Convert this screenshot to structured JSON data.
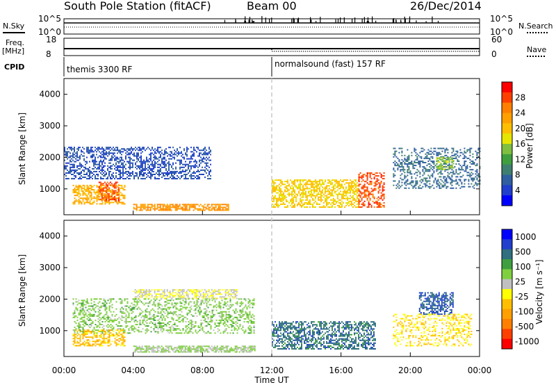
{
  "header": {
    "station": "South Pole Station (fitACF)",
    "beam": "Beam 00",
    "date": "26/Dec/2014"
  },
  "strip": {
    "nsky_label": "N.Sky",
    "nsearch_label": "N.Search",
    "freq_label": "Freq.",
    "freq_unit": "[MHz]",
    "nave_label": "Nave",
    "cpid_label": "CPID",
    "noise_ticks_left": [
      "10^5",
      "10^0"
    ],
    "noise_ticks_right": [
      "10^5",
      "10^0"
    ],
    "freq_ticks": [
      "18",
      "8"
    ],
    "nave_ticks": [
      "60",
      "0"
    ],
    "cpid_segments": [
      {
        "label": "themis 3300 RF",
        "start_hour": 0
      },
      {
        "label": "normalsound (fast) 157 RF",
        "start_hour": 12
      }
    ],
    "freq_mhz": 12,
    "nave_before_switch": 24,
    "nave_after_switch": 15
  },
  "colors": {
    "frame": "#000000",
    "switch_line": "#c8c8c8",
    "ground_scatter": "#c0c0c0",
    "power_scale": [
      "#0000ff",
      "#1f3fcc",
      "#2f5fa0",
      "#3f7f6f",
      "#3f9f3f",
      "#7fbf3f",
      "#e5e500",
      "#ffbf00",
      "#ff9f00",
      "#ff7f00",
      "#ff3f00",
      "#ff0000"
    ],
    "velocity_scale": [
      "#0000ff",
      "#1f3fcc",
      "#2f6f7f",
      "#3f9f3f",
      "#7fcf3f",
      "#c0c0c0",
      "#ffff00",
      "#ffbf00",
      "#ff9f00",
      "#ff7f00",
      "#ff3f00",
      "#ff0000"
    ]
  },
  "chart_data": [
    {
      "type": "heatmap",
      "name": "power",
      "ylabel": "Slant Range [km]",
      "xlim_hours": [
        0,
        24
      ],
      "ylim_km": [
        180,
        4500
      ],
      "y_ticks": [
        "1000",
        "2000",
        "3000",
        "4000"
      ],
      "colorbar_label": "Power [dB]",
      "colorbar_ticks": [
        "4",
        "8",
        "12",
        "16",
        "20",
        "24",
        "28"
      ],
      "colorbar_range": [
        0,
        30
      ],
      "scatter_regions": [
        {
          "t": [
            0.0,
            8.5
          ],
          "r": [
            1300,
            2300
          ],
          "value": 5,
          "density": 0.45
        },
        {
          "t": [
            0.5,
            3.5
          ],
          "r": [
            500,
            1100
          ],
          "value": 20,
          "density": 0.55
        },
        {
          "t": [
            2.0,
            3.2
          ],
          "r": [
            600,
            1200
          ],
          "value": 26,
          "density": 0.5
        },
        {
          "t": [
            4.0,
            9.5
          ],
          "r": [
            300,
            500
          ],
          "value": 22,
          "density": 0.7
        },
        {
          "t": [
            12.0,
            17.0
          ],
          "r": [
            400,
            1300
          ],
          "value": 18,
          "density": 0.55
        },
        {
          "t": [
            17.0,
            18.5
          ],
          "r": [
            400,
            1500
          ],
          "value": 26,
          "density": 0.45
        },
        {
          "t": [
            19.0,
            24.0
          ],
          "r": [
            1000,
            2300
          ],
          "value": 7,
          "density": 0.35
        },
        {
          "t": [
            21.5,
            22.5
          ],
          "r": [
            1600,
            2000
          ],
          "value": 14,
          "density": 0.5
        }
      ]
    },
    {
      "type": "heatmap",
      "name": "velocity",
      "xlabel": "Time UT",
      "ylabel": "Slant Range [km]",
      "xlim_hours": [
        0,
        24
      ],
      "ylim_km": [
        180,
        4500
      ],
      "x_ticks": [
        "00:00",
        "04:00",
        "08:00",
        "12:00",
        "16:00",
        "20:00",
        "00:00"
      ],
      "y_ticks": [
        "1000",
        "2000",
        "3000",
        "4000"
      ],
      "colorbar_label": "Velocity [m s⁻¹]",
      "colorbar_ticks": [
        "1000",
        "500",
        "100",
        "25",
        "-25",
        "-100",
        "-500",
        "-1000"
      ],
      "colorbar_range": [
        -1200,
        1200
      ],
      "scatter_regions": [
        {
          "t": [
            4.0,
            10.0
          ],
          "r": [
            2000,
            2300
          ],
          "value": 0,
          "density": 0.5
        },
        {
          "t": [
            0.5,
            3.5
          ],
          "r": [
            500,
            1000
          ],
          "value": 300,
          "density": 0.5
        },
        {
          "t": [
            0.5,
            11.0
          ],
          "r": [
            900,
            2000
          ],
          "value": -300,
          "density": 0.35
        },
        {
          "t": [
            4.0,
            11.0
          ],
          "r": [
            300,
            500
          ],
          "value": -200,
          "density": 0.7
        },
        {
          "t": [
            12.0,
            18.0
          ],
          "r": [
            400,
            1300
          ],
          "value": -700,
          "density": 0.55
        },
        {
          "t": [
            20.5,
            22.5
          ],
          "r": [
            1500,
            2200
          ],
          "value": -800,
          "density": 0.55
        },
        {
          "t": [
            19.0,
            23.5
          ],
          "r": [
            500,
            1500
          ],
          "value": 200,
          "density": 0.3
        }
      ]
    }
  ]
}
